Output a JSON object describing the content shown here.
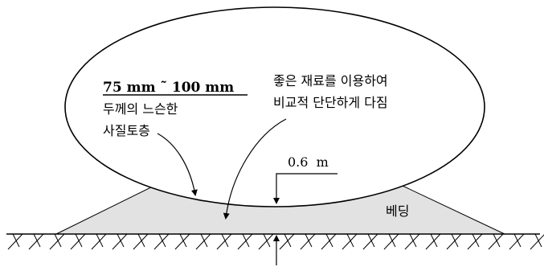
{
  "labels": {
    "thickness_range": "75 mm ˜ 100 mm",
    "loose_layer_line1": "두께의 느슨한",
    "loose_layer_line2": "사질토층",
    "compaction_line1": "좋은 재료를 이용하여",
    "compaction_line2": "비교적 단단하게 다짐",
    "dimension": "0.6  m",
    "bedding": "베딩"
  },
  "colors": {
    "bedding_fill": "#e2e2e2",
    "line": "#000000",
    "background": "#ffffff"
  }
}
